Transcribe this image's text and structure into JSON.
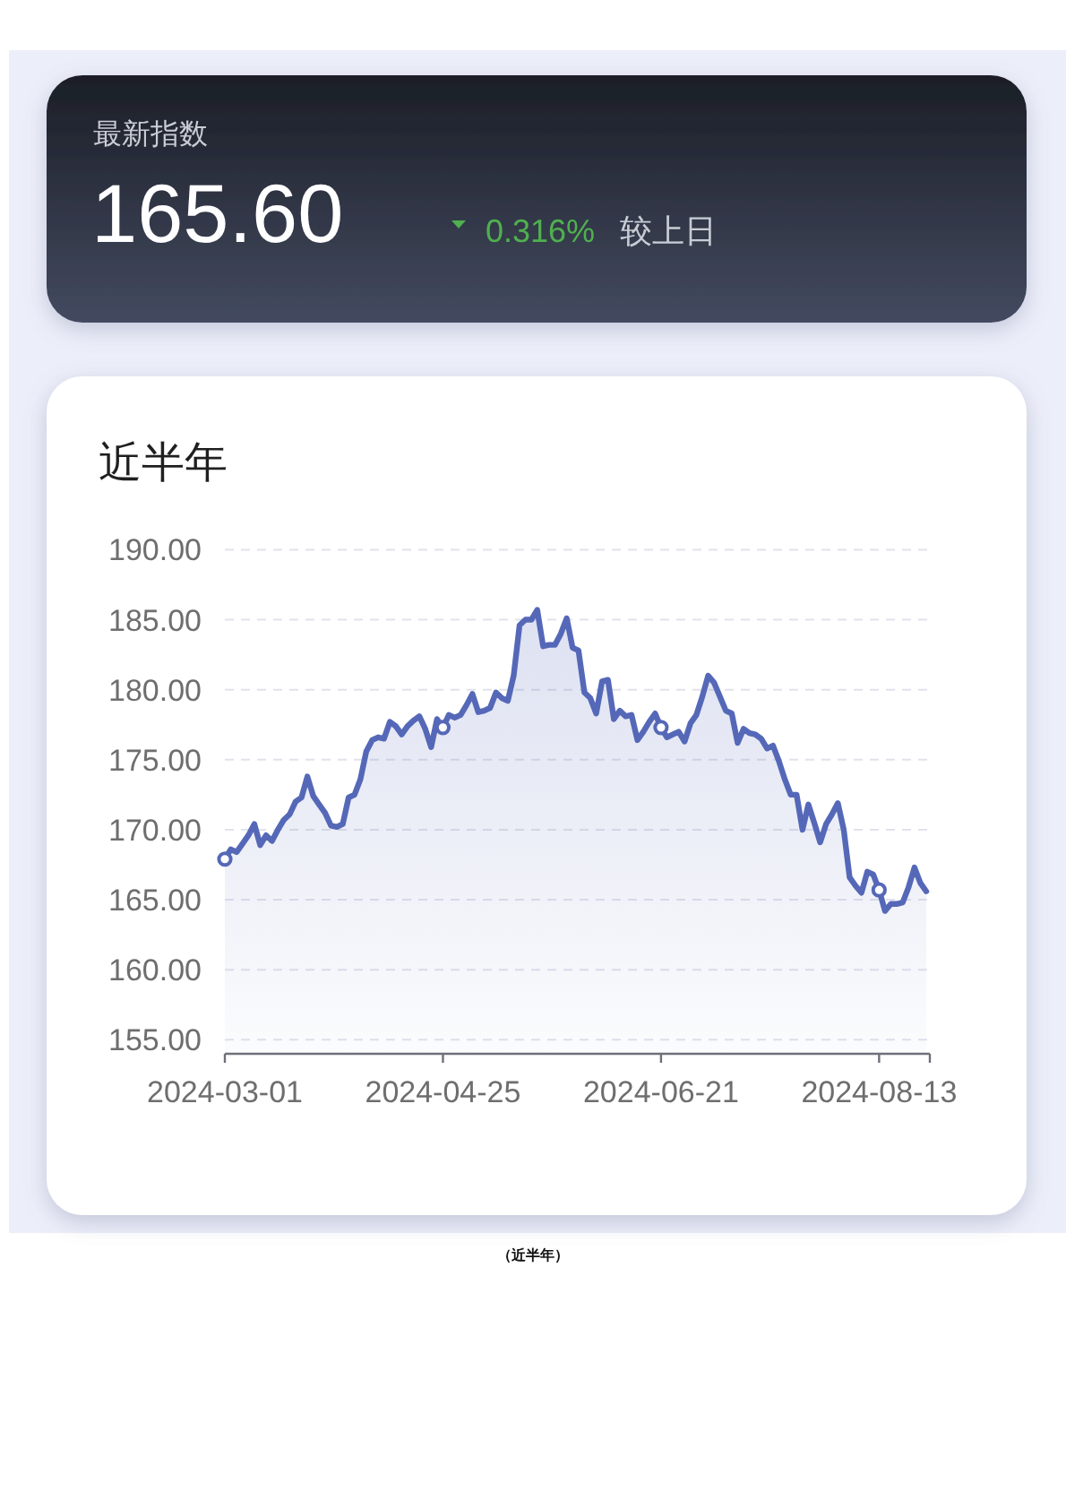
{
  "chart_data": [
    {
      "type": "other",
      "title": "最新指数",
      "annotations": [
        "165.60",
        "0.316%",
        "较上日"
      ]
    },
    {
      "type": "area",
      "title": "近半年",
      "categories": [
        "2024-03-01",
        null,
        null,
        null,
        null,
        null,
        null,
        null,
        null,
        null,
        null,
        null,
        null,
        null,
        null,
        null,
        null,
        null,
        null,
        null,
        null,
        null,
        null,
        null,
        null,
        null,
        null,
        null,
        null,
        null,
        null,
        null,
        null,
        null,
        null,
        null,
        null,
        "2024-04-25",
        null,
        null,
        null,
        null,
        null,
        null,
        null,
        null,
        null,
        null,
        null,
        null,
        null,
        null,
        null,
        null,
        null,
        null,
        null,
        null,
        null,
        null,
        null,
        null,
        null,
        null,
        null,
        null,
        null,
        null,
        null,
        null,
        null,
        null,
        null,
        null,
        "2024-06-21",
        null,
        null,
        null,
        null,
        null,
        null,
        null,
        null,
        null,
        null,
        null,
        null,
        null,
        null,
        null,
        null,
        null,
        null,
        null,
        null,
        null,
        null,
        null,
        null,
        null,
        null,
        null,
        null,
        null,
        null,
        null,
        null,
        null,
        null,
        null,
        null,
        "2024-08-13",
        null,
        null,
        null,
        null,
        null,
        null,
        null,
        null
      ],
      "series": [
        {
          "color": "#5568b8",
          "values": [
            167.9,
            168.6,
            168.4,
            169.0,
            169.6,
            170.4,
            168.9,
            169.6,
            169.2,
            170.0,
            170.7,
            171.1,
            172.0,
            172.3,
            173.8,
            172.4,
            171.8,
            171.2,
            170.3,
            170.2,
            170.4,
            172.3,
            172.5,
            173.6,
            175.6,
            176.4,
            176.6,
            176.5,
            177.7,
            177.4,
            176.8,
            177.4,
            177.8,
            178.1,
            177.2,
            175.9,
            177.9,
            177.3,
            178.2,
            178.0,
            178.2,
            178.9,
            179.7,
            178.4,
            178.5,
            178.7,
            179.8,
            179.4,
            179.2,
            181.0,
            184.6,
            185.0,
            185.0,
            185.7,
            183.1,
            183.2,
            183.2,
            184.0,
            185.1,
            183.0,
            182.8,
            179.8,
            179.4,
            178.3,
            180.6,
            180.7,
            177.9,
            178.5,
            178.1,
            178.2,
            176.4,
            177.0,
            177.7,
            178.3,
            177.3,
            176.6,
            176.8,
            177.0,
            176.3,
            177.6,
            178.2,
            179.5,
            181.0,
            180.5,
            179.5,
            178.5,
            178.3,
            176.2,
            177.2,
            176.9,
            176.8,
            176.5,
            175.8,
            176.0,
            174.9,
            173.6,
            172.5,
            172.5,
            170.0,
            171.8,
            170.5,
            169.1,
            170.4,
            171.1,
            171.9,
            170.0,
            166.6,
            166.0,
            165.5,
            167.0,
            166.8,
            165.7,
            164.2,
            164.7,
            164.7,
            164.8,
            165.9,
            167.3,
            166.2,
            165.6
          ]
        },
        {
          "type": "scatter",
          "color": "#5568b8",
          "marker": "circle",
          "values": [
            167.9,
            null,
            null,
            null,
            null,
            null,
            null,
            null,
            null,
            null,
            null,
            null,
            null,
            null,
            null,
            null,
            null,
            null,
            null,
            null,
            null,
            null,
            null,
            null,
            null,
            null,
            null,
            null,
            null,
            null,
            null,
            null,
            null,
            null,
            null,
            null,
            null,
            177.3,
            null,
            null,
            null,
            null,
            null,
            null,
            null,
            null,
            null,
            null,
            null,
            null,
            null,
            null,
            null,
            null,
            null,
            null,
            null,
            null,
            null,
            null,
            null,
            null,
            null,
            null,
            null,
            null,
            null,
            null,
            null,
            null,
            null,
            null,
            null,
            null,
            177.3,
            null,
            null,
            null,
            null,
            null,
            null,
            null,
            null,
            null,
            null,
            null,
            null,
            null,
            null,
            null,
            null,
            null,
            null,
            null,
            null,
            null,
            null,
            null,
            null,
            null,
            null,
            null,
            null,
            null,
            null,
            null,
            null,
            null,
            null,
            null,
            null,
            165.7,
            null,
            null,
            null,
            null,
            null,
            null,
            null,
            null
          ]
        }
      ],
      "ylim": [
        154,
        190
      ],
      "yticks": [
        {
          "value": 155,
          "label": "155.00"
        },
        {
          "value": 160,
          "label": "160.00"
        },
        {
          "value": 165,
          "label": "165.00"
        },
        {
          "value": 170,
          "label": "170.00"
        },
        {
          "value": 175,
          "label": "175.00"
        },
        {
          "value": 180,
          "label": "180.00"
        },
        {
          "value": 185,
          "label": "185.00"
        },
        {
          "value": 190,
          "label": "190.00"
        }
      ],
      "grid": "y",
      "annotations": [
        "（近半年）"
      ]
    }
  ]
}
